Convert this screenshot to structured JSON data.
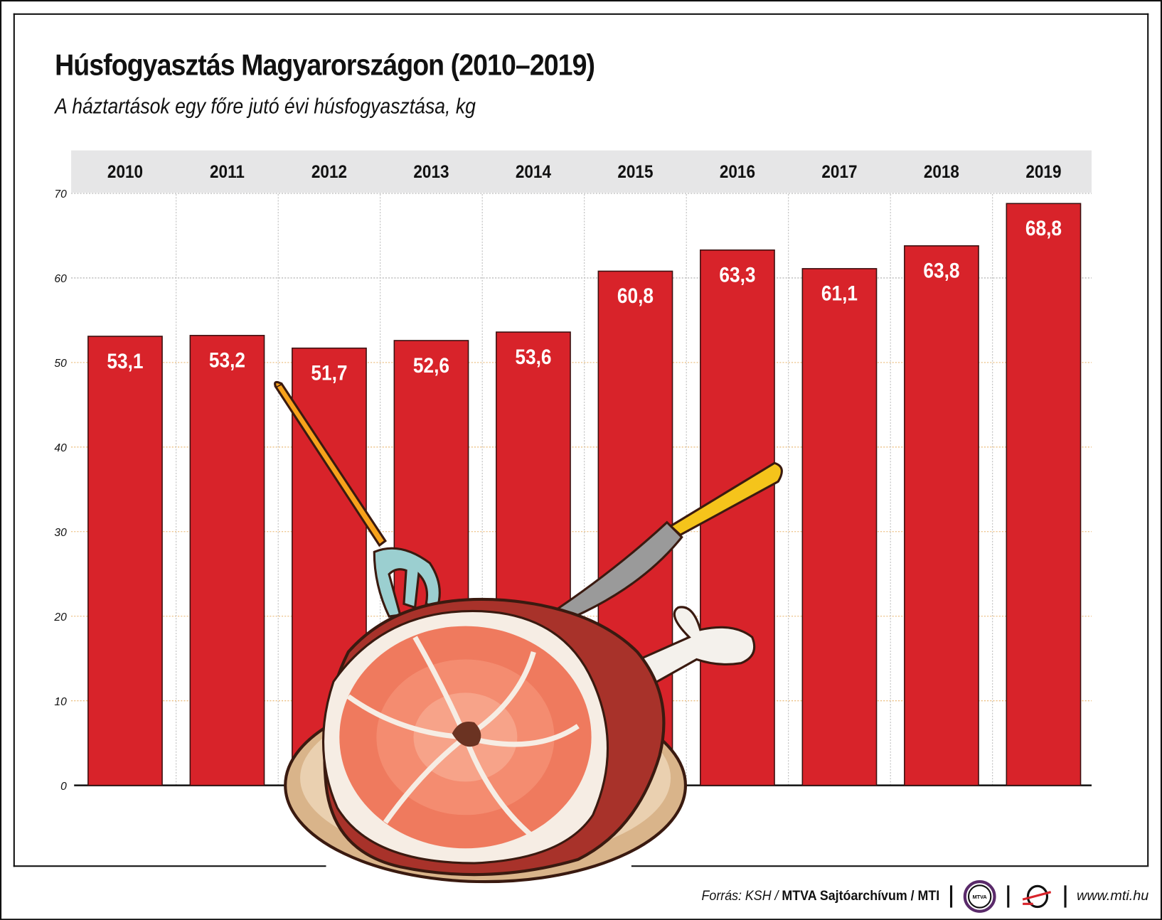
{
  "title": "Húsfogyasztás Magyarországon (2010–2019)",
  "subtitle": "A háztartások egy főre jutó évi húsfogyasztása, kg",
  "chart_data": {
    "type": "bar",
    "title": "Húsfogyasztás Magyarországon (2010–2019)",
    "subtitle": "A háztartások egy főre jutó évi húsfogyasztása, kg",
    "categories": [
      "2010",
      "2011",
      "2012",
      "2013",
      "2014",
      "2015",
      "2016",
      "2017",
      "2018",
      "2019"
    ],
    "values": [
      53.1,
      53.2,
      51.7,
      52.6,
      53.6,
      60.8,
      63.3,
      61.1,
      63.8,
      68.8
    ],
    "data_labels": [
      "53,1",
      "53,2",
      "51,7",
      "52,6",
      "53,6",
      "60,8",
      "63,3",
      "61,1",
      "63,8",
      "68,8"
    ],
    "yticks": [
      "0",
      "10",
      "20",
      "30",
      "40",
      "50",
      "60",
      "70"
    ],
    "ylim": [
      0,
      70
    ],
    "grid": true,
    "category_position": "top",
    "bar_color": "#d8232a",
    "header_band_color": "#e6e6e7"
  },
  "footer": {
    "source_prefix": "Forrás: KSH / ",
    "source_bold": "MTVA Sajtóarchívum / MTI",
    "mtva_logo_text": "MTVA",
    "url": "www.mti.hu"
  }
}
